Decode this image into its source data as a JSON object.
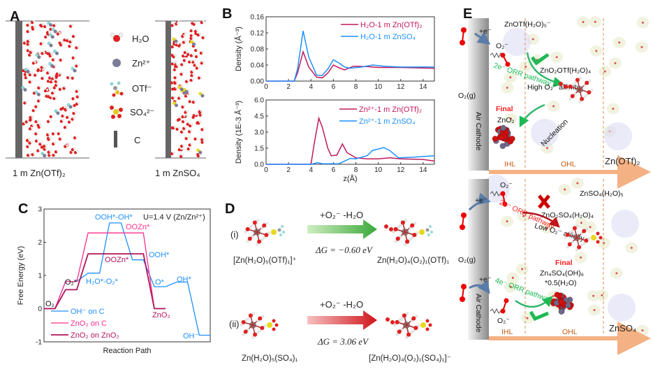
{
  "panels": {
    "a": "A",
    "b": "B",
    "c": "C",
    "d": "D",
    "e": "E"
  },
  "panel_a": {
    "legend": [
      "H₂O",
      "Zn²⁺",
      "OTf⁻",
      "SO₄²⁻",
      "C"
    ],
    "left_label": "1 m Zn(OTf)₂",
    "right_label": "1 m ZnSO₄"
  },
  "colors": {
    "otf": "#c2185b",
    "so4": "#1e90ff",
    "zno2_c": "#ff2d8a",
    "zno2_zno2": "#b0145a",
    "green": "#1db954",
    "red": "#e01010",
    "orange": "#f4b183"
  },
  "chart_data": [
    {
      "type": "line",
      "title": "",
      "xlabel": "",
      "ylabel": "Density (Å⁻³)",
      "xlim": [
        0,
        15
      ],
      "ylim": [
        0,
        0.16
      ],
      "xticks": [
        "0",
        "2",
        "4",
        "6",
        "8",
        "10",
        "12",
        "14"
      ],
      "yticks": [
        "0.00",
        "0.04",
        "0.08",
        "0.12",
        "0.16"
      ],
      "legend_position": "top-right",
      "series": [
        {
          "name": "H₂O-1 m Zn(OTf)₂",
          "points": [
            [
              0,
              0
            ],
            [
              2.5,
              0
            ],
            [
              2.8,
              0.02
            ],
            [
              3.3,
              0.073
            ],
            [
              3.8,
              0.035
            ],
            [
              4.5,
              0.01
            ],
            [
              5,
              0.008
            ],
            [
              5.5,
              0.02
            ],
            [
              6,
              0.04
            ],
            [
              6.5,
              0.033
            ],
            [
              7,
              0.028
            ],
            [
              7.8,
              0.037
            ],
            [
              9,
              0.036
            ],
            [
              10,
              0.034
            ],
            [
              12,
              0.034
            ],
            [
              15,
              0.032
            ]
          ]
        },
        {
          "name": "H₂O-1 m ZnSO₄",
          "points": [
            [
              0,
              0
            ],
            [
              2.5,
              0
            ],
            [
              2.8,
              0.03
            ],
            [
              3.3,
              0.125
            ],
            [
              3.8,
              0.06
            ],
            [
              4.5,
              0.015
            ],
            [
              5,
              0.014
            ],
            [
              5.5,
              0.03
            ],
            [
              6,
              0.053
            ],
            [
              6.5,
              0.045
            ],
            [
              7,
              0.035
            ],
            [
              7.5,
              0.032
            ],
            [
              8.5,
              0.035
            ],
            [
              9.5,
              0.04
            ],
            [
              10.5,
              0.037
            ],
            [
              12,
              0.035
            ],
            [
              15,
              0.035
            ]
          ]
        }
      ]
    },
    {
      "type": "line",
      "title": "",
      "xlabel": "z(Å)",
      "ylabel": "Density (1E-3 Å⁻³)",
      "xlim": [
        0,
        15
      ],
      "ylim": [
        0,
        6
      ],
      "xticks": [
        "0",
        "2",
        "4",
        "6",
        "8",
        "10",
        "12",
        "14"
      ],
      "yticks": [
        "0.0",
        "1.5",
        "3.0",
        "4.5",
        "6.0"
      ],
      "legend_position": "top-right",
      "series": [
        {
          "name": "Zn²⁺-1 m Zn(OTf)₂",
          "points": [
            [
              0,
              0
            ],
            [
              4,
              0
            ],
            [
              4.3,
              2
            ],
            [
              4.7,
              4.3
            ],
            [
              5,
              3.5
            ],
            [
              5.5,
              1.5
            ],
            [
              5.8,
              0.8
            ],
            [
              6.3,
              0.85
            ],
            [
              6.8,
              1.9
            ],
            [
              7.2,
              1.1
            ],
            [
              8,
              0.6
            ],
            [
              9,
              0.5
            ],
            [
              10,
              0.5
            ],
            [
              11,
              0.6
            ],
            [
              12,
              0.5
            ],
            [
              14,
              0.45
            ],
            [
              15,
              0.3
            ]
          ]
        },
        {
          "name": "Zn²⁺-1 m ZnSO₄",
          "points": [
            [
              0,
              0
            ],
            [
              4,
              0
            ],
            [
              4.6,
              0.15
            ],
            [
              5,
              0.05
            ],
            [
              6.5,
              0.05
            ],
            [
              7.5,
              0.55
            ],
            [
              8,
              0.5
            ],
            [
              9,
              0.8
            ],
            [
              9.5,
              1.3
            ],
            [
              10.5,
              1.55
            ],
            [
              11,
              1.3
            ],
            [
              11.8,
              0.6
            ],
            [
              13,
              0.65
            ],
            [
              15,
              0.8
            ]
          ]
        }
      ]
    },
    {
      "type": "line",
      "title": "",
      "xlabel": "Reaction Path",
      "ylabel": "Free Energy (eV)",
      "xlim": [
        0,
        100
      ],
      "ylim": [
        -1,
        3
      ],
      "yticks": [
        "-1",
        "0",
        "1",
        "2",
        "3"
      ],
      "legend_position": "bottom-left",
      "annotation": "U=1.4 V (Zn/Zn²⁺)",
      "state_labels": [
        "O₂",
        "O₂*",
        "H₂O*-O₂*",
        "OOH*-OH*",
        "OOZn*",
        "OOZn*",
        "OOH*",
        "O*",
        "OH*",
        "OH⁻",
        "ZnO₂"
      ],
      "series": [
        {
          "name": "OH⁻ on C",
          "points": [
            [
              0,
              0
            ],
            [
              6.6,
              0
            ],
            [
              13,
              0.82
            ],
            [
              19.7,
              0.82
            ],
            [
              26.5,
              1.07
            ],
            [
              33.5,
              1.07
            ],
            [
              39.4,
              2.58
            ],
            [
              46.4,
              2.58
            ],
            [
              53.2,
              1.47
            ],
            [
              59.8,
              1.47
            ],
            [
              66.4,
              0.66
            ],
            [
              73.1,
              0.66
            ],
            [
              79.8,
              0.8
            ],
            [
              86.4,
              0.8
            ],
            [
              93.4,
              -0.8
            ],
            [
              100,
              -0.8
            ]
          ]
        },
        {
          "name": "ZnO₂ on C",
          "points": [
            [
              0,
              0
            ],
            [
              6.6,
              0
            ],
            [
              13,
              0.82
            ],
            [
              19.7,
              0.82
            ],
            [
              26.5,
              2.28
            ],
            [
              59.8,
              2.28
            ],
            [
              66.4,
              0
            ],
            [
              73.1,
              0
            ]
          ]
        },
        {
          "name": "ZnO₂ on ZnO₂",
          "points": [
            [
              0,
              0
            ],
            [
              6.6,
              0
            ],
            [
              13,
              0.57
            ],
            [
              19.7,
              0.57
            ],
            [
              26.5,
              1.65
            ],
            [
              59.8,
              1.65
            ],
            [
              66.4,
              0
            ],
            [
              73.1,
              0
            ]
          ]
        }
      ]
    }
  ],
  "panel_d": {
    "i": {
      "tag": "(i)",
      "reagent": "+O₂⁻ -H₂O",
      "dg": "ΔG = −0.60 eV",
      "reactant": "[Zn(H₂O)₅(OTf)₁]⁺",
      "product": "Zn(H₂O)₄(O₂)₁(OTf)₁"
    },
    "ii": {
      "tag": "(ii)",
      "reagent": "+O₂⁻ -H₂O",
      "dg": "ΔG = 3.06 eV",
      "reactant": "Zn(H₂O)₅(SO₄)₁",
      "product": "[Zn(H₂O)₄(O₂)₁(SO₄)₁]⁻"
    }
  },
  "panel_e": {
    "top": {
      "electron": "+e⁻",
      "o2_minus": "O₂⁻",
      "complex": "ZnOTf(H₂O)₅⁻",
      "pathway": "2e⁻ ORR pathway",
      "intermediate": "ZnO₂OTf(H₂O)₄",
      "affinity": "High O₂⁻ affinity",
      "nucleation": "Nucleation",
      "final": "Final",
      "final_product": "ZnO₂",
      "gas": "O₂(g)",
      "cathode": "Air Cathode",
      "ihl": "IHL",
      "ohl": "OHL",
      "electrolyte": "Zn(OTf)₂"
    },
    "bottom": {
      "electron1": "+e⁻",
      "electron2": "+e⁻",
      "o2_minus_top": "O₂⁻",
      "o2_minus_bottom": "O₂⁻",
      "complex": "ZnSO₄(H₂O)₅",
      "pathway_2e": "2e⁻ ORR pathway",
      "intermediate": "ZnO₂SO₄(H₂O)₄",
      "affinity": "Low O₂⁻ affinity",
      "final": "Final",
      "final_product": "Zn₄SO₄(OH)₆",
      "final_product2": "*0.5(H₂O)",
      "pathway_4e": "4e⁻ ORR pathway",
      "gas": "O₂(g)",
      "cathode": "Air Cathode",
      "ihl": "IHL",
      "ohl": "OHL",
      "electrolyte": "ZnSO₄"
    }
  }
}
